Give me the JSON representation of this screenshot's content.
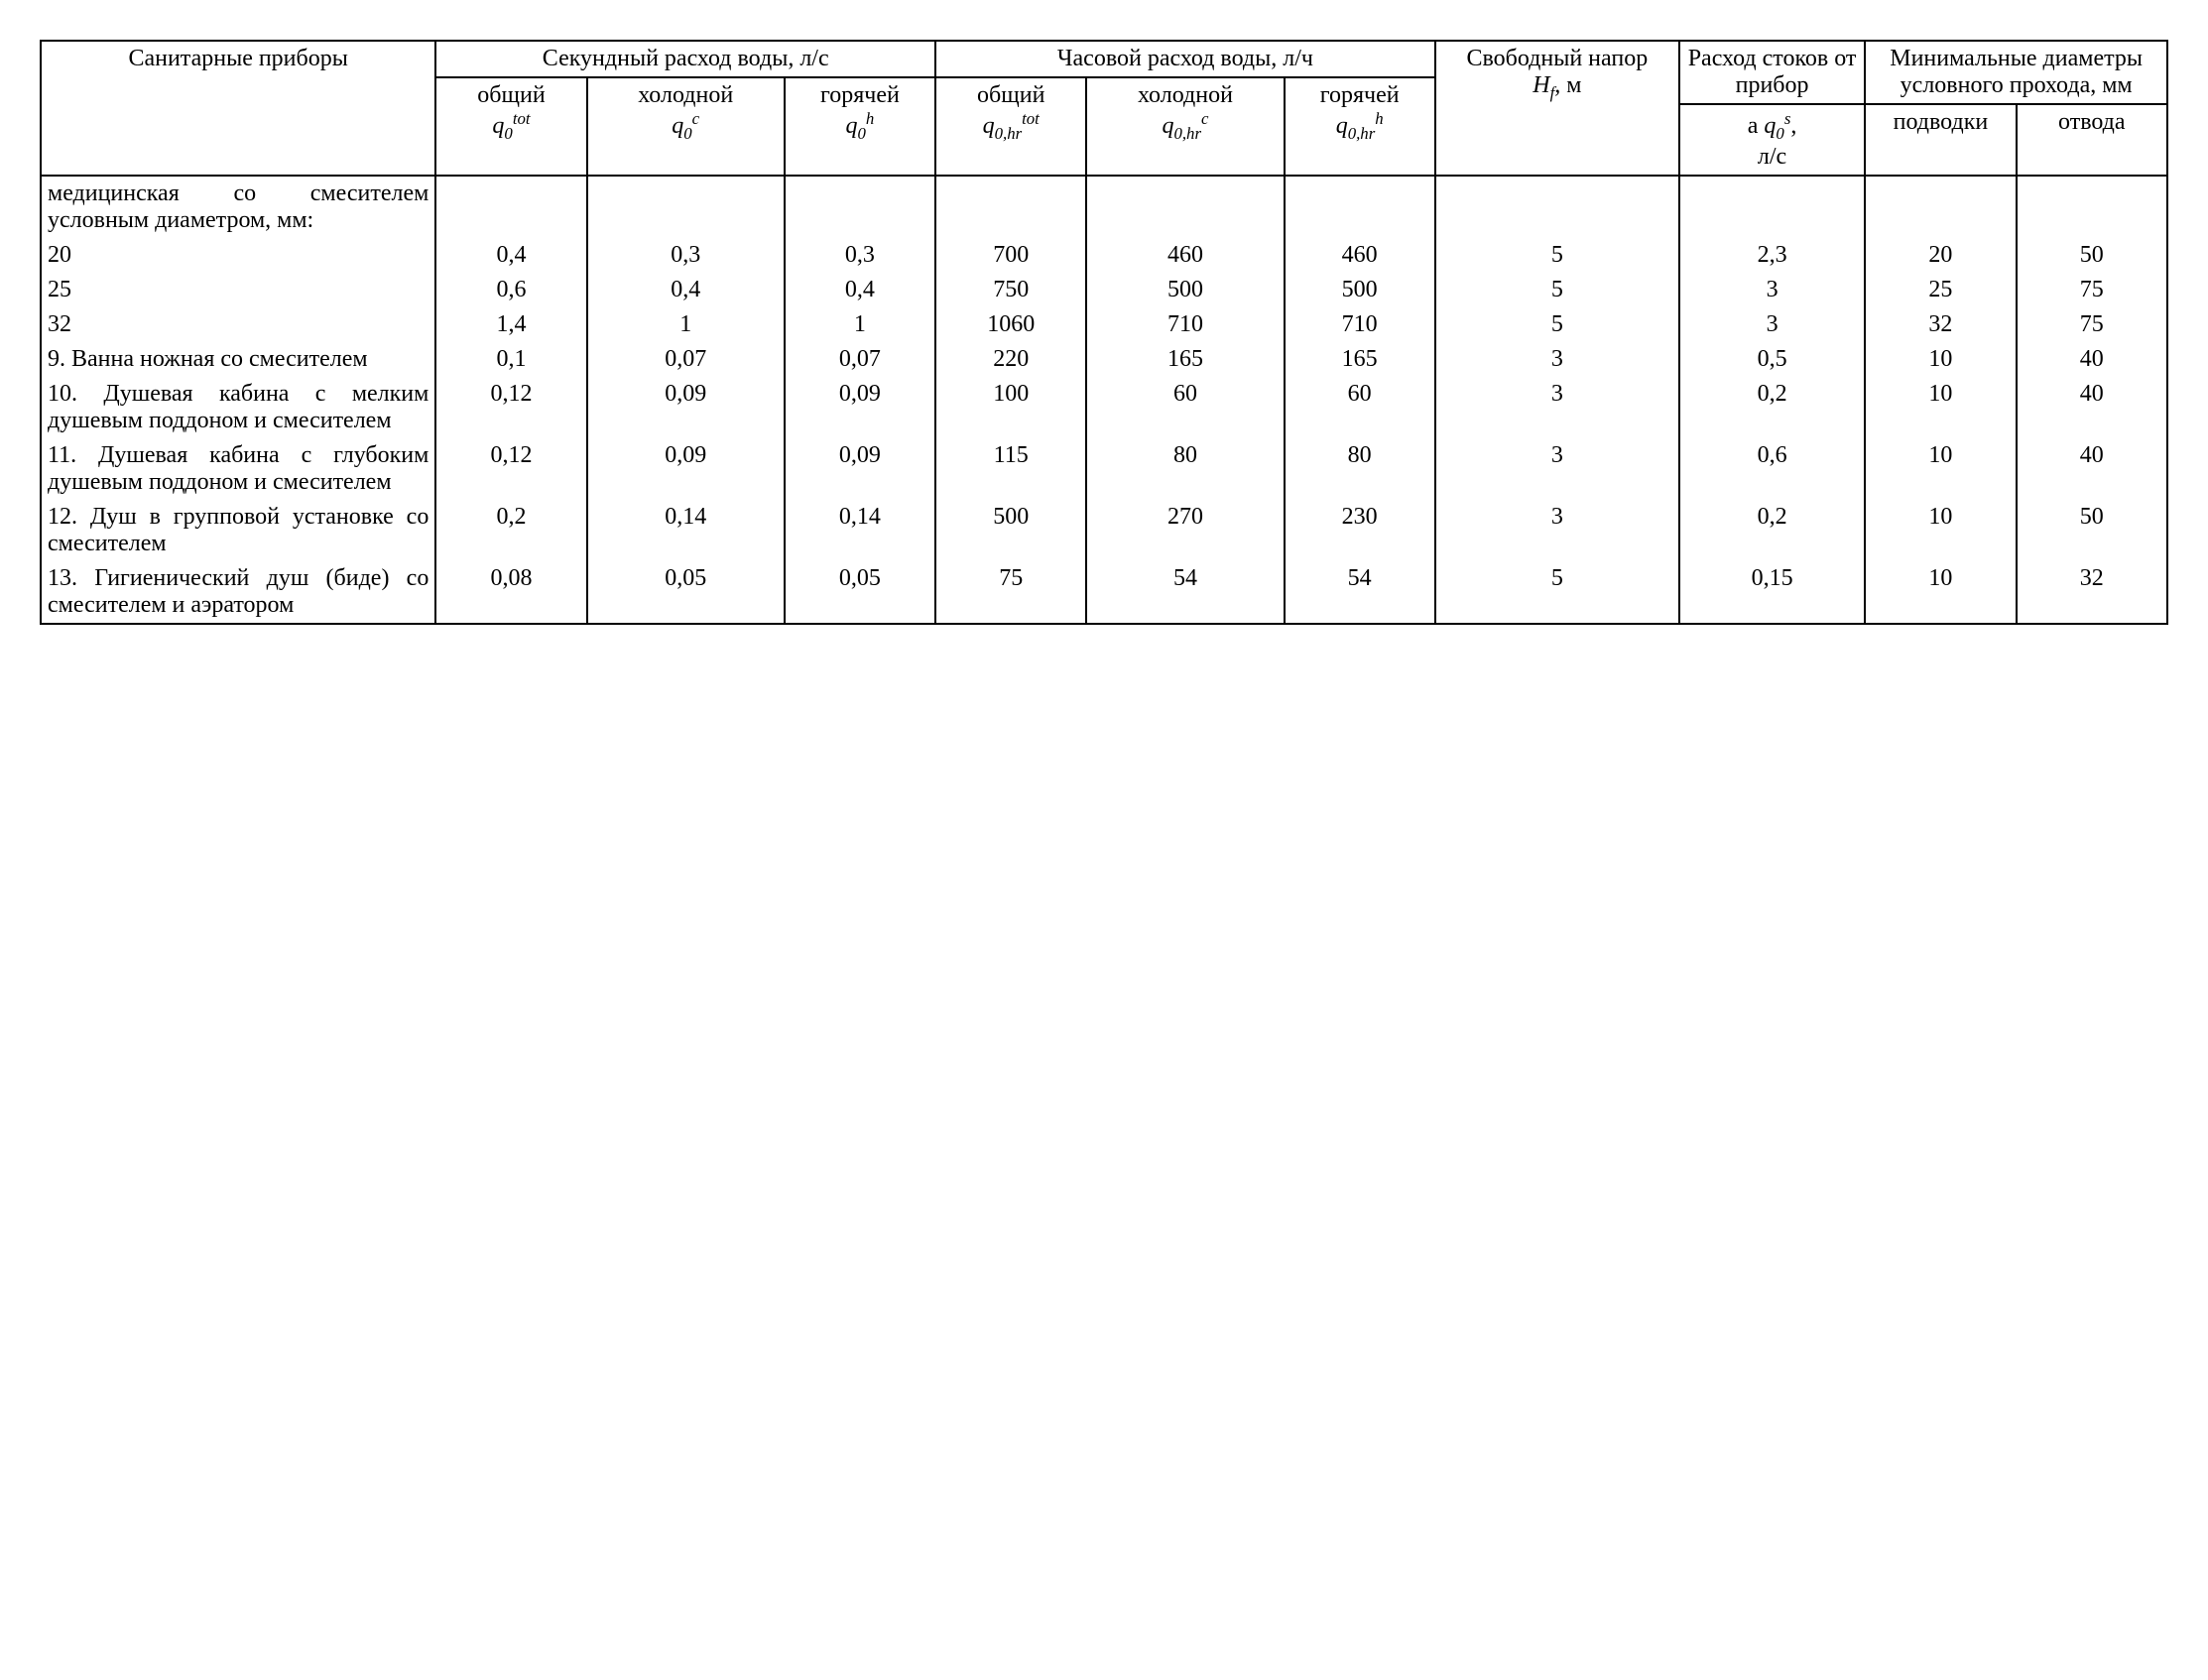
{
  "table": {
    "type": "table",
    "border_color": "#000000",
    "background_color": "#ffffff",
    "font_family": "Times New Roman",
    "base_fontsize_pt": 18,
    "header": {
      "sanitary": "Санитарные приборы",
      "sec_flow_group": "Секундный расход воды, л/с",
      "hour_flow_group": "Часовой расход воды, л/ч",
      "common": "общий",
      "cold": "холодной",
      "hot": "горячей",
      "free_head": "Свободный напор",
      "free_head_sym": "Hf, м",
      "waste_flow": "Расход стоков от прибор",
      "waste_flow_prefix": "а ",
      "waste_unit": "л/с",
      "min_dia_group": "Минимальные диаметры условного прохода, мм",
      "supply": "подводки",
      "drain": "отвода",
      "q0_tot": "q₀ᵗᵒᵗ",
      "q0_c": "q₀ᶜ",
      "q0_h": "q₀ʰ",
      "q0hr_tot": "q₀,hrᵗᵒᵗ",
      "q0hr_c": "q₀,hrᶜ",
      "q0hr_h": "q₀,hrʰ",
      "q0_s": "q₀ˢ"
    },
    "body_rows": [
      {
        "label": "медицинская со смесителем условным диаметром, мм:",
        "vals": [
          "",
          "",
          "",
          "",
          "",
          "",
          "",
          "",
          "",
          ""
        ]
      },
      {
        "label": "20",
        "vals": [
          "0,4",
          "0,3",
          "0,3",
          "700",
          "460",
          "460",
          "5",
          "2,3",
          "20",
          "50"
        ]
      },
      {
        "label": "25",
        "vals": [
          "0,6",
          "0,4",
          "0,4",
          "750",
          "500",
          "500",
          "5",
          "3",
          "25",
          "75"
        ]
      },
      {
        "label": "32",
        "vals": [
          "1,4",
          "1",
          "1",
          "1060",
          "710",
          "710",
          "5",
          "3",
          "32",
          "75"
        ]
      },
      {
        "label": "9. Ванна ножная со смесителем",
        "vals": [
          "0,1",
          "0,07",
          "0,07",
          "220",
          "165",
          "165",
          "3",
          "0,5",
          "10",
          "40"
        ]
      },
      {
        "label": "10. Душевая кабина с мелким душевым поддоном и смесителем",
        "vals": [
          "0,12",
          "0,09",
          "0,09",
          "100",
          "60",
          "60",
          "3",
          "0,2",
          "10",
          "40"
        ]
      },
      {
        "label": "11. Душевая кабина с глубоким душевым поддоном и смесителем",
        "vals": [
          "0,12",
          "0,09",
          "0,09",
          "115",
          "80",
          "80",
          "3",
          "0,6",
          "10",
          "40"
        ]
      },
      {
        "label": "12. Душ в групповой установке со смесителем",
        "vals": [
          "0,2",
          "0,14",
          "0,14",
          "500",
          "270",
          "230",
          "3",
          "0,2",
          "10",
          "50"
        ]
      },
      {
        "label": "13. Гигиенический душ (биде) со смесителем и аэратором",
        "vals": [
          "0,08",
          "0,05",
          "0,05",
          "75",
          "54",
          "54",
          "5",
          "0,15",
          "10",
          "32"
        ]
      }
    ]
  }
}
